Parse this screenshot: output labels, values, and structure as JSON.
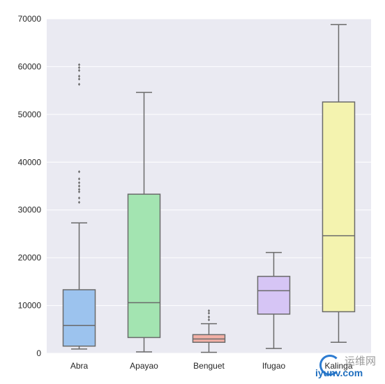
{
  "chart_data": {
    "type": "box",
    "categories": [
      "Abra",
      "Apayao",
      "Benguet",
      "Ifugao",
      "Kalinga"
    ],
    "ylim": [
      0,
      70000
    ],
    "yticks": [
      0,
      10000,
      20000,
      30000,
      40000,
      50000,
      60000,
      70000
    ],
    "grid": true,
    "colors": {
      "background": "#EAEAF2",
      "grid": "#FFFFFF",
      "edge": "#6A6A6A",
      "boxes": [
        "#9CC3EE",
        "#A3E4B1",
        "#F2B0A6",
        "#D6C5F5",
        "#F4F3AF"
      ]
    },
    "boxes": [
      {
        "name": "Abra",
        "whisker_low": 900,
        "q1": 1500,
        "median": 5800,
        "q3": 13300,
        "whisker_high": 27300,
        "outliers": [
          31600,
          32500,
          33800,
          34300,
          35000,
          35700,
          36500,
          38000,
          56300,
          57400,
          58000,
          59200,
          59800,
          60400
        ]
      },
      {
        "name": "Apayao",
        "whisker_low": 300,
        "q1": 3300,
        "median": 10600,
        "q3": 33300,
        "whisker_high": 54600,
        "outliers": []
      },
      {
        "name": "Benguet",
        "whisker_low": 200,
        "q1": 2300,
        "median": 3000,
        "q3": 3900,
        "whisker_high": 6200,
        "outliers": [
          7000,
          7600,
          8400,
          8900
        ]
      },
      {
        "name": "Ifugao",
        "whisker_low": 1000,
        "q1": 8200,
        "median": 13100,
        "q3": 16100,
        "whisker_high": 21100,
        "outliers": []
      },
      {
        "name": "Kalinga",
        "whisker_low": 2300,
        "q1": 8700,
        "median": 24600,
        "q3": 52600,
        "whisker_high": 68800,
        "outliers": []
      }
    ]
  },
  "watermark": {
    "top_text": "运维网",
    "bottom_text": "iyunv.com"
  }
}
